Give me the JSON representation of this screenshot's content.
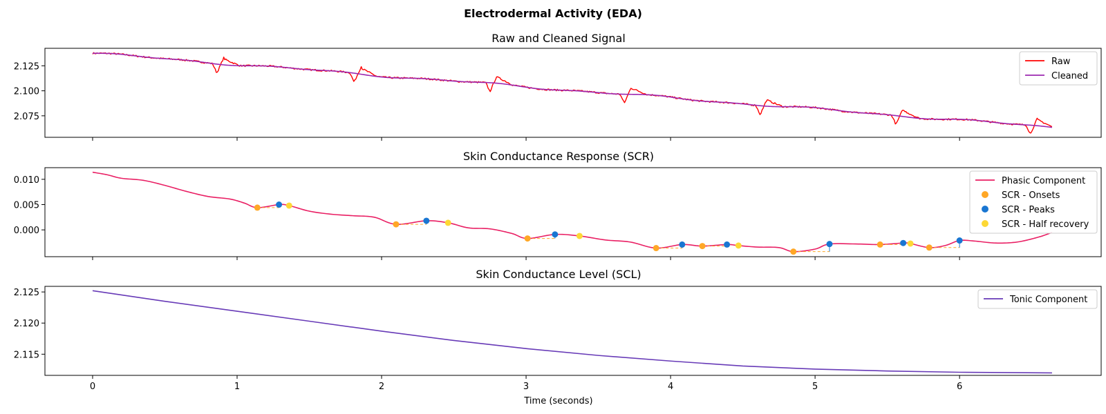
{
  "figure": {
    "title": "Electrodermal Activity (EDA)",
    "xlabel": "Time (seconds)"
  },
  "colors": {
    "raw": "#ff0000",
    "cleaned": "#9c27b0",
    "phasic": "#e91e63",
    "onsets": "#ffa726",
    "peaks": "#1976d2",
    "half_recovery": "#fdd835",
    "tonic": "#673ab7",
    "amplitude_line": "#ffa726"
  },
  "chart_data": [
    {
      "type": "line",
      "title": "Raw and Cleaned Signal",
      "xlim": [
        -0.33,
        6.98
      ],
      "ylim": [
        2.0535,
        2.1425
      ],
      "xticks": [
        0,
        1,
        2,
        3,
        4,
        5,
        6
      ],
      "yticks": [
        2.075,
        2.1,
        2.125
      ],
      "ytick_labels": [
        "2.075",
        "2.100",
        "2.125"
      ],
      "legend_position": "top-right",
      "legend": [
        "Raw",
        "Cleaned"
      ],
      "x_start": 0,
      "x_end": 6.64,
      "start_value": 2.1375,
      "end_value": 2.0635,
      "artifact_times": [
        0.86,
        1.81,
        2.75,
        3.68,
        4.62,
        5.56,
        6.49
      ],
      "series": [
        {
          "name": "Raw",
          "color_key": "raw"
        },
        {
          "name": "Cleaned",
          "color_key": "cleaned"
        }
      ]
    },
    {
      "type": "line",
      "title": "Skin Conductance Response (SCR)",
      "xlim": [
        -0.33,
        6.98
      ],
      "ylim": [
        -0.0053,
        0.0123
      ],
      "xticks": [
        0,
        1,
        2,
        3,
        4,
        5,
        6
      ],
      "yticks": [
        0.0,
        0.005,
        0.01
      ],
      "ytick_labels": [
        "0.000",
        "0.005",
        "0.010"
      ],
      "legend_position": "top-right",
      "legend": [
        "Phasic Component",
        "SCR - Onsets",
        "SCR - Peaks",
        "SCR - Half recovery"
      ],
      "phasic": {
        "x": [
          0,
          0.1,
          0.2,
          0.35,
          0.5,
          0.65,
          0.8,
          0.95,
          1.05,
          1.14,
          1.29,
          1.36,
          1.5,
          1.65,
          1.8,
          1.95,
          2.1,
          2.31,
          2.46,
          2.6,
          2.75,
          2.9,
          3.01,
          3.2,
          3.37,
          3.55,
          3.72,
          3.9,
          4.08,
          4.22,
          4.39,
          4.47,
          4.6,
          4.75,
          4.85,
          5.0,
          5.1,
          5.3,
          5.45,
          5.61,
          5.66,
          5.79,
          5.9,
          6.0,
          6.1,
          6.25,
          6.4,
          6.55,
          6.64
        ],
        "y": [
          0.0114,
          0.0109,
          0.0102,
          0.0098,
          0.0088,
          0.0076,
          0.0066,
          0.0061,
          0.0053,
          0.0044,
          0.005,
          0.0048,
          0.0037,
          0.0031,
          0.0028,
          0.0025,
          0.0011,
          0.0018,
          0.0014,
          0.0004,
          0.0002,
          -0.0007,
          -0.0017,
          -0.0009,
          -0.0012,
          -0.002,
          -0.0024,
          -0.0036,
          -0.0029,
          -0.0032,
          -0.0029,
          -0.0031,
          -0.0034,
          -0.0035,
          -0.0043,
          -0.0038,
          -0.0028,
          -0.0028,
          -0.0029,
          -0.0026,
          -0.0027,
          -0.0035,
          -0.0031,
          -0.0021,
          -0.0022,
          -0.0026,
          -0.0024,
          -0.0014,
          -0.0005
        ]
      },
      "onsets": {
        "x": [
          1.14,
          2.1,
          3.01,
          3.9,
          4.22,
          4.85,
          5.45,
          5.79
        ],
        "y": [
          0.0044,
          0.0011,
          -0.0017,
          -0.0036,
          -0.0032,
          -0.0043,
          -0.0029,
          -0.0035
        ]
      },
      "peaks": {
        "x": [
          1.29,
          2.31,
          3.2,
          4.08,
          4.39,
          5.1,
          5.61,
          6.0
        ],
        "y": [
          0.005,
          0.0018,
          -0.0009,
          -0.0029,
          -0.0029,
          -0.0028,
          -0.0026,
          -0.0021
        ]
      },
      "half_recovery": {
        "x": [
          1.36,
          2.46,
          3.37,
          4.47,
          5.66
        ],
        "y": [
          0.0048,
          0.0014,
          -0.0012,
          -0.0031,
          -0.0027
        ]
      }
    },
    {
      "type": "line",
      "title": "Skin Conductance Level (SCL)",
      "xlim": [
        -0.33,
        6.98
      ],
      "ylim": [
        2.1116,
        2.1259
      ],
      "xticks": [
        0,
        1,
        2,
        3,
        4,
        5,
        6
      ],
      "yticks": [
        2.115,
        2.12,
        2.125
      ],
      "ytick_labels": [
        "2.115",
        "2.120",
        "2.125"
      ],
      "legend_position": "top-right",
      "legend": [
        "Tonic Component"
      ],
      "tonic": {
        "x": [
          0,
          0.5,
          1,
          1.5,
          2,
          2.5,
          3,
          3.5,
          4,
          4.5,
          5,
          5.5,
          6,
          6.64
        ],
        "y": [
          2.1252,
          2.1235,
          2.1219,
          2.1203,
          2.1187,
          2.1172,
          2.1159,
          2.1148,
          2.1139,
          2.1131,
          2.1126,
          2.1123,
          2.1121,
          2.112
        ]
      }
    }
  ]
}
